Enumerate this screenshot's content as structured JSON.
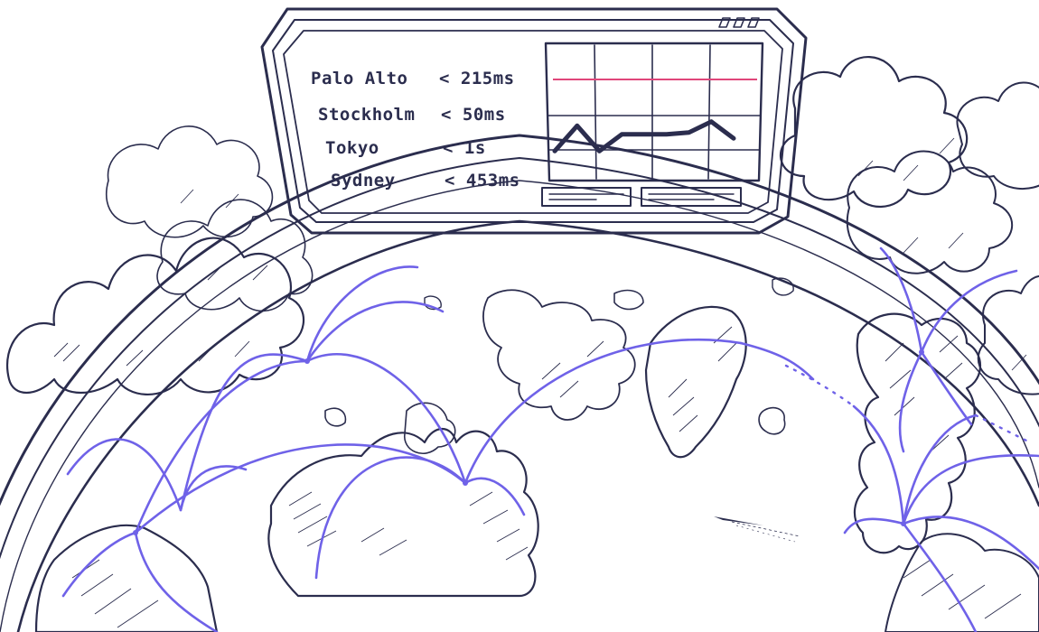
{
  "latency_panel": {
    "rows": [
      {
        "city": "Palo Alto",
        "latency": "< 215ms"
      },
      {
        "city": "Stockholm",
        "latency": "< 50ms"
      },
      {
        "city": "Tokyo",
        "latency": "< 1s"
      },
      {
        "city": "Sydney",
        "latency": "< 453ms"
      }
    ],
    "sparkline": {
      "threshold_color": "#e0467a",
      "line_color": "#2b2d4e",
      "values": [
        2,
        5,
        2,
        4,
        4,
        4,
        4.2,
        5.5,
        3.5
      ]
    }
  },
  "colors": {
    "ink": "#2b2d4e",
    "route": "#6f62e8",
    "background": "#ffffff"
  },
  "icons": [
    "airplane-icon",
    "globe-illustration",
    "cloud-illustration"
  ]
}
